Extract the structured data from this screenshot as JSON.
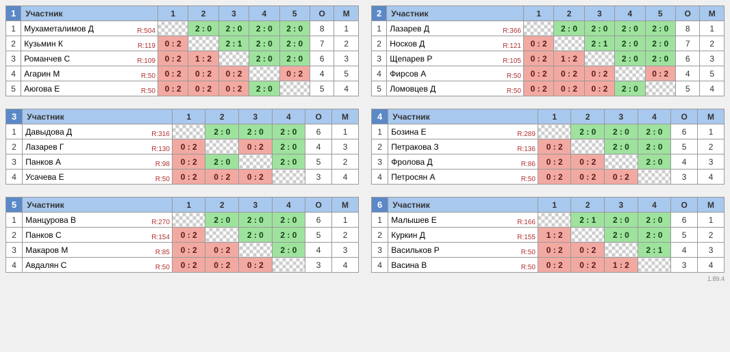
{
  "labels": {
    "participant": "Участник",
    "points": "О",
    "place": "М",
    "version": "1.89.4"
  },
  "groups": [
    {
      "num": "1",
      "rounds": [
        "1",
        "2",
        "3",
        "4",
        "5"
      ],
      "players": [
        {
          "n": "1",
          "name": "Мухаметалимов Д",
          "rating": "R:504",
          "cells": [
            null,
            {
              "s": "2 : 0",
              "r": "w"
            },
            {
              "s": "2 : 0",
              "r": "w"
            },
            {
              "s": "2 : 0",
              "r": "w"
            },
            {
              "s": "2 : 0",
              "r": "w"
            }
          ],
          "pts": "8",
          "pl": "1"
        },
        {
          "n": "2",
          "name": "Кузьмин К",
          "rating": "R:119",
          "cells": [
            {
              "s": "0 : 2",
              "r": "l"
            },
            null,
            {
              "s": "2 : 1",
              "r": "w"
            },
            {
              "s": "2 : 0",
              "r": "w"
            },
            {
              "s": "2 : 0",
              "r": "w"
            }
          ],
          "pts": "7",
          "pl": "2"
        },
        {
          "n": "3",
          "name": "Романчев С",
          "rating": "R:109",
          "cells": [
            {
              "s": "0 : 2",
              "r": "l"
            },
            {
              "s": "1 : 2",
              "r": "l"
            },
            null,
            {
              "s": "2 : 0",
              "r": "w"
            },
            {
              "s": "2 : 0",
              "r": "w"
            }
          ],
          "pts": "6",
          "pl": "3"
        },
        {
          "n": "4",
          "name": "Агарин М",
          "rating": "R:50",
          "cells": [
            {
              "s": "0 : 2",
              "r": "l"
            },
            {
              "s": "0 : 2",
              "r": "l"
            },
            {
              "s": "0 : 2",
              "r": "l"
            },
            null,
            {
              "s": "0 : 2",
              "r": "l"
            }
          ],
          "pts": "4",
          "pl": "5"
        },
        {
          "n": "5",
          "name": "Аюгова Е",
          "rating": "R:50",
          "cells": [
            {
              "s": "0 : 2",
              "r": "l"
            },
            {
              "s": "0 : 2",
              "r": "l"
            },
            {
              "s": "0 : 2",
              "r": "l"
            },
            {
              "s": "2 : 0",
              "r": "w"
            },
            null
          ],
          "pts": "5",
          "pl": "4"
        }
      ]
    },
    {
      "num": "2",
      "rounds": [
        "1",
        "2",
        "3",
        "4",
        "5"
      ],
      "players": [
        {
          "n": "1",
          "name": "Лазарев Д",
          "rating": "R:366",
          "cells": [
            null,
            {
              "s": "2 : 0",
              "r": "w"
            },
            {
              "s": "2 : 0",
              "r": "w"
            },
            {
              "s": "2 : 0",
              "r": "w"
            },
            {
              "s": "2 : 0",
              "r": "w"
            }
          ],
          "pts": "8",
          "pl": "1"
        },
        {
          "n": "2",
          "name": "Носков Д",
          "rating": "R:121",
          "cells": [
            {
              "s": "0 : 2",
              "r": "l"
            },
            null,
            {
              "s": "2 : 1",
              "r": "w"
            },
            {
              "s": "2 : 0",
              "r": "w"
            },
            {
              "s": "2 : 0",
              "r": "w"
            }
          ],
          "pts": "7",
          "pl": "2"
        },
        {
          "n": "3",
          "name": "Щепарев Р",
          "rating": "R:105",
          "cells": [
            {
              "s": "0 : 2",
              "r": "l"
            },
            {
              "s": "1 : 2",
              "r": "l"
            },
            null,
            {
              "s": "2 : 0",
              "r": "w"
            },
            {
              "s": "2 : 0",
              "r": "w"
            }
          ],
          "pts": "6",
          "pl": "3"
        },
        {
          "n": "4",
          "name": "Фирсов А",
          "rating": "R:50",
          "cells": [
            {
              "s": "0 : 2",
              "r": "l"
            },
            {
              "s": "0 : 2",
              "r": "l"
            },
            {
              "s": "0 : 2",
              "r": "l"
            },
            null,
            {
              "s": "0 : 2",
              "r": "l"
            }
          ],
          "pts": "4",
          "pl": "5"
        },
        {
          "n": "5",
          "name": "Ломовцев Д",
          "rating": "R:50",
          "cells": [
            {
              "s": "0 : 2",
              "r": "l"
            },
            {
              "s": "0 : 2",
              "r": "l"
            },
            {
              "s": "0 : 2",
              "r": "l"
            },
            {
              "s": "2 : 0",
              "r": "w"
            },
            null
          ],
          "pts": "5",
          "pl": "4"
        }
      ]
    },
    {
      "num": "3",
      "rounds": [
        "1",
        "2",
        "3",
        "4"
      ],
      "players": [
        {
          "n": "1",
          "name": "Давыдова Д",
          "rating": "R:316",
          "cells": [
            null,
            {
              "s": "2 : 0",
              "r": "w"
            },
            {
              "s": "2 : 0",
              "r": "w"
            },
            {
              "s": "2 : 0",
              "r": "w"
            }
          ],
          "pts": "6",
          "pl": "1"
        },
        {
          "n": "2",
          "name": "Лазарев Г",
          "rating": "R:130",
          "cells": [
            {
              "s": "0 : 2",
              "r": "l"
            },
            null,
            {
              "s": "0 : 2",
              "r": "l"
            },
            {
              "s": "2 : 0",
              "r": "w"
            }
          ],
          "pts": "4",
          "pl": "3"
        },
        {
          "n": "3",
          "name": "Панков А",
          "rating": "R:98",
          "cells": [
            {
              "s": "0 : 2",
              "r": "l"
            },
            {
              "s": "2 : 0",
              "r": "w"
            },
            null,
            {
              "s": "2 : 0",
              "r": "w"
            }
          ],
          "pts": "5",
          "pl": "2"
        },
        {
          "n": "4",
          "name": "Усачева Е",
          "rating": "R:50",
          "cells": [
            {
              "s": "0 : 2",
              "r": "l"
            },
            {
              "s": "0 : 2",
              "r": "l"
            },
            {
              "s": "0 : 2",
              "r": "l"
            },
            null
          ],
          "pts": "3",
          "pl": "4"
        }
      ]
    },
    {
      "num": "4",
      "rounds": [
        "1",
        "2",
        "3",
        "4"
      ],
      "players": [
        {
          "n": "1",
          "name": "Бозина Е",
          "rating": "R:289",
          "cells": [
            null,
            {
              "s": "2 : 0",
              "r": "w"
            },
            {
              "s": "2 : 0",
              "r": "w"
            },
            {
              "s": "2 : 0",
              "r": "w"
            }
          ],
          "pts": "6",
          "pl": "1"
        },
        {
          "n": "2",
          "name": "Петракова З",
          "rating": "R:136",
          "cells": [
            {
              "s": "0 : 2",
              "r": "l"
            },
            null,
            {
              "s": "2 : 0",
              "r": "w"
            },
            {
              "s": "2 : 0",
              "r": "w"
            }
          ],
          "pts": "5",
          "pl": "2"
        },
        {
          "n": "3",
          "name": "Фролова Д",
          "rating": "R:86",
          "cells": [
            {
              "s": "0 : 2",
              "r": "l"
            },
            {
              "s": "0 : 2",
              "r": "l"
            },
            null,
            {
              "s": "2 : 0",
              "r": "w"
            }
          ],
          "pts": "4",
          "pl": "3"
        },
        {
          "n": "4",
          "name": "Петросян А",
          "rating": "R:50",
          "cells": [
            {
              "s": "0 : 2",
              "r": "l"
            },
            {
              "s": "0 : 2",
              "r": "l"
            },
            {
              "s": "0 : 2",
              "r": "l"
            },
            null
          ],
          "pts": "3",
          "pl": "4"
        }
      ]
    },
    {
      "num": "5",
      "rounds": [
        "1",
        "2",
        "3",
        "4"
      ],
      "players": [
        {
          "n": "1",
          "name": "Манцурова В",
          "rating": "R:270",
          "cells": [
            null,
            {
              "s": "2 : 0",
              "r": "w"
            },
            {
              "s": "2 : 0",
              "r": "w"
            },
            {
              "s": "2 : 0",
              "r": "w"
            }
          ],
          "pts": "6",
          "pl": "1"
        },
        {
          "n": "2",
          "name": "Панков С",
          "rating": "R:154",
          "cells": [
            {
              "s": "0 : 2",
              "r": "l"
            },
            null,
            {
              "s": "2 : 0",
              "r": "w"
            },
            {
              "s": "2 : 0",
              "r": "w"
            }
          ],
          "pts": "5",
          "pl": "2"
        },
        {
          "n": "3",
          "name": "Макаров М",
          "rating": "R:85",
          "cells": [
            {
              "s": "0 : 2",
              "r": "l"
            },
            {
              "s": "0 : 2",
              "r": "l"
            },
            null,
            {
              "s": "2 : 0",
              "r": "w"
            }
          ],
          "pts": "4",
          "pl": "3"
        },
        {
          "n": "4",
          "name": "Авдалян С",
          "rating": "R:50",
          "cells": [
            {
              "s": "0 : 2",
              "r": "l"
            },
            {
              "s": "0 : 2",
              "r": "l"
            },
            {
              "s": "0 : 2",
              "r": "l"
            },
            null
          ],
          "pts": "3",
          "pl": "4"
        }
      ]
    },
    {
      "num": "6",
      "rounds": [
        "1",
        "2",
        "3",
        "4"
      ],
      "players": [
        {
          "n": "1",
          "name": "Малышев Е",
          "rating": "R:166",
          "cells": [
            null,
            {
              "s": "2 : 1",
              "r": "w"
            },
            {
              "s": "2 : 0",
              "r": "w"
            },
            {
              "s": "2 : 0",
              "r": "w"
            }
          ],
          "pts": "6",
          "pl": "1"
        },
        {
          "n": "2",
          "name": "Куркин Д",
          "rating": "R:155",
          "cells": [
            {
              "s": "1 : 2",
              "r": "l"
            },
            null,
            {
              "s": "2 : 0",
              "r": "w"
            },
            {
              "s": "2 : 0",
              "r": "w"
            }
          ],
          "pts": "5",
          "pl": "2"
        },
        {
          "n": "3",
          "name": "Васильков Р",
          "rating": "R:50",
          "cells": [
            {
              "s": "0 : 2",
              "r": "l"
            },
            {
              "s": "0 : 2",
              "r": "l"
            },
            null,
            {
              "s": "2 : 1",
              "r": "w"
            }
          ],
          "pts": "4",
          "pl": "3"
        },
        {
          "n": "4",
          "name": "Васина В",
          "rating": "R:50",
          "cells": [
            {
              "s": "0 : 2",
              "r": "l"
            },
            {
              "s": "0 : 2",
              "r": "l"
            },
            {
              "s": "1 : 2",
              "r": "l"
            },
            null
          ],
          "pts": "3",
          "pl": "4"
        }
      ]
    }
  ]
}
